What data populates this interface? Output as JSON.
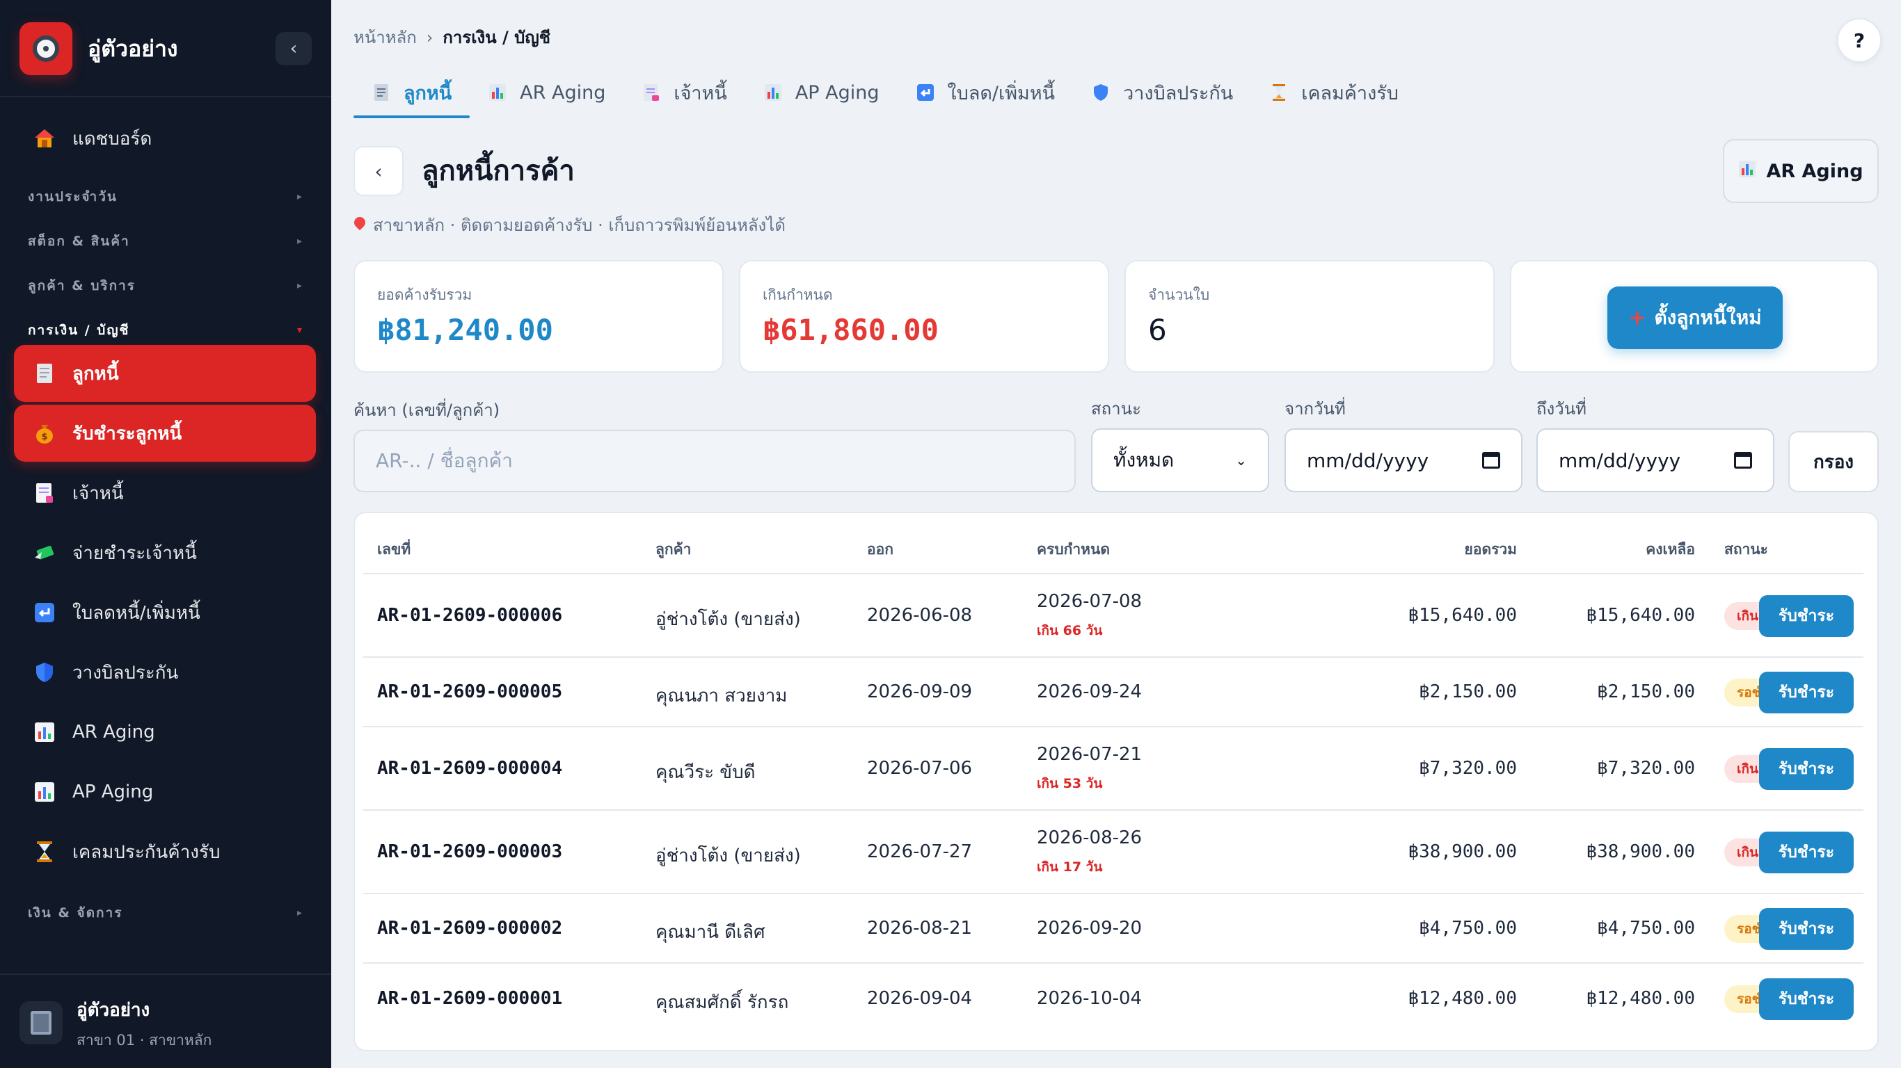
{
  "app": {
    "name": "อู่ตัวอย่าง",
    "collapse_icon": "‹"
  },
  "sidebar": {
    "dashboard": "แดชบอร์ด",
    "groups": {
      "daily": "งานประจำวัน",
      "stock": "สต็อก & สินค้า",
      "customer": "ลูกค้า & บริการ",
      "finance": "การเงิน / บัญชี",
      "money": "เงิน & จัดการ"
    },
    "items": {
      "ar": "ลูกหนี้",
      "receive": "รับชำระลูกหนี้",
      "ap": "เจ้าหนี้",
      "pay": "จ่ายชำระเจ้าหนี้",
      "note": "ใบลดหนี้/เพิ่มหนี้",
      "insure": "วางบิลประกัน",
      "ar_aging": "AR Aging",
      "ap_aging": "AP Aging",
      "claim": "เคลมประกันค้างรับ"
    },
    "footer": {
      "name": "อู่ตัวอย่าง",
      "branch": "สาขา 01 · สาขาหลัก"
    }
  },
  "breadcrumb": {
    "home": "หน้าหลัก",
    "sep": "›",
    "current": "การเงิน / บัญชี"
  },
  "help": "?",
  "tabs": [
    "ลูกหนี้",
    "AR Aging",
    "เจ้าหนี้",
    "AP Aging",
    "ใบลด/เพิ่มหนี้",
    "วางบิลประกัน",
    "เคลมค้างรับ"
  ],
  "page": {
    "back": "‹",
    "title": "ลูกหนี้การค้า",
    "subtitle": "สาขาหลัก · ติดตามยอดค้างรับ · เก็บถาวรพิมพ์ย้อนหลังได้",
    "ar_button": "AR Aging"
  },
  "summary": {
    "total_label": "ยอดค้างรับรวม",
    "total_value": "฿81,240.00",
    "total_color": "#1e88c8",
    "overdue_label": "เกินกำหนด",
    "overdue_value": "฿61,860.00",
    "overdue_color": "#e53935",
    "count_label": "จำนวนใบ",
    "count_value": "6",
    "new_button": "ตั้งลูกหนี้ใหม่",
    "new_plus": "+"
  },
  "filters": {
    "search_label": "ค้นหา (เลขที่/ลูกค้า)",
    "search_placeholder": "AR-.. / ชื่อลูกค้า",
    "status_label": "สถานะ",
    "status_value": "ทั้งหมด",
    "from_label": "จากวันที่",
    "from_placeholder": "mm/dd/yyyy",
    "to_label": "ถึงวันที่",
    "to_placeholder": "mm/dd/yyyy",
    "filter_button": "กรอง"
  },
  "table": {
    "headers": {
      "no": "เลขที่",
      "customer": "ลูกค้า",
      "issue": "ออก",
      "due": "ครบกำหนด",
      "total": "ยอดรวม",
      "balance": "คงเหลือ",
      "status": "สถานะ"
    },
    "pay_label": "รับชำระ",
    "rows": [
      {
        "no": "AR-01-2609-000006",
        "customer": "อู่ช่างโต้ง (ขายส่ง)",
        "issue": "2026-06-08",
        "due": "2026-07-08",
        "late": "เกิน 66 วัน",
        "total": "฿15,640.00",
        "balance": "฿15,640.00",
        "status": "เกินกำหนด",
        "kind": "over"
      },
      {
        "no": "AR-01-2609-000005",
        "customer": "คุณนภา สวยงาม",
        "issue": "2026-09-09",
        "due": "2026-09-24",
        "late": "",
        "total": "฿2,150.00",
        "balance": "฿2,150.00",
        "status": "รอชำระ",
        "kind": "wait"
      },
      {
        "no": "AR-01-2609-000004",
        "customer": "คุณวีระ ขับดี",
        "issue": "2026-07-06",
        "due": "2026-07-21",
        "late": "เกิน 53 วัน",
        "total": "฿7,320.00",
        "balance": "฿7,320.00",
        "status": "เกินกำหนด",
        "kind": "over"
      },
      {
        "no": "AR-01-2609-000003",
        "customer": "อู่ช่างโต้ง (ขายส่ง)",
        "issue": "2026-07-27",
        "due": "2026-08-26",
        "late": "เกิน 17 วัน",
        "total": "฿38,900.00",
        "balance": "฿38,900.00",
        "status": "เกินกำหนด",
        "kind": "over"
      },
      {
        "no": "AR-01-2609-000002",
        "customer": "คุณมานี ดีเลิศ",
        "issue": "2026-08-21",
        "due": "2026-09-20",
        "late": "",
        "total": "฿4,750.00",
        "balance": "฿4,750.00",
        "status": "รอชำระ",
        "kind": "wait"
      },
      {
        "no": "AR-01-2609-000001",
        "customer": "คุณสมศักดิ์ รักรถ",
        "issue": "2026-09-04",
        "due": "2026-10-04",
        "late": "",
        "total": "฿12,480.00",
        "balance": "฿12,480.00",
        "status": "รอชำระ",
        "kind": "wait"
      }
    ]
  }
}
